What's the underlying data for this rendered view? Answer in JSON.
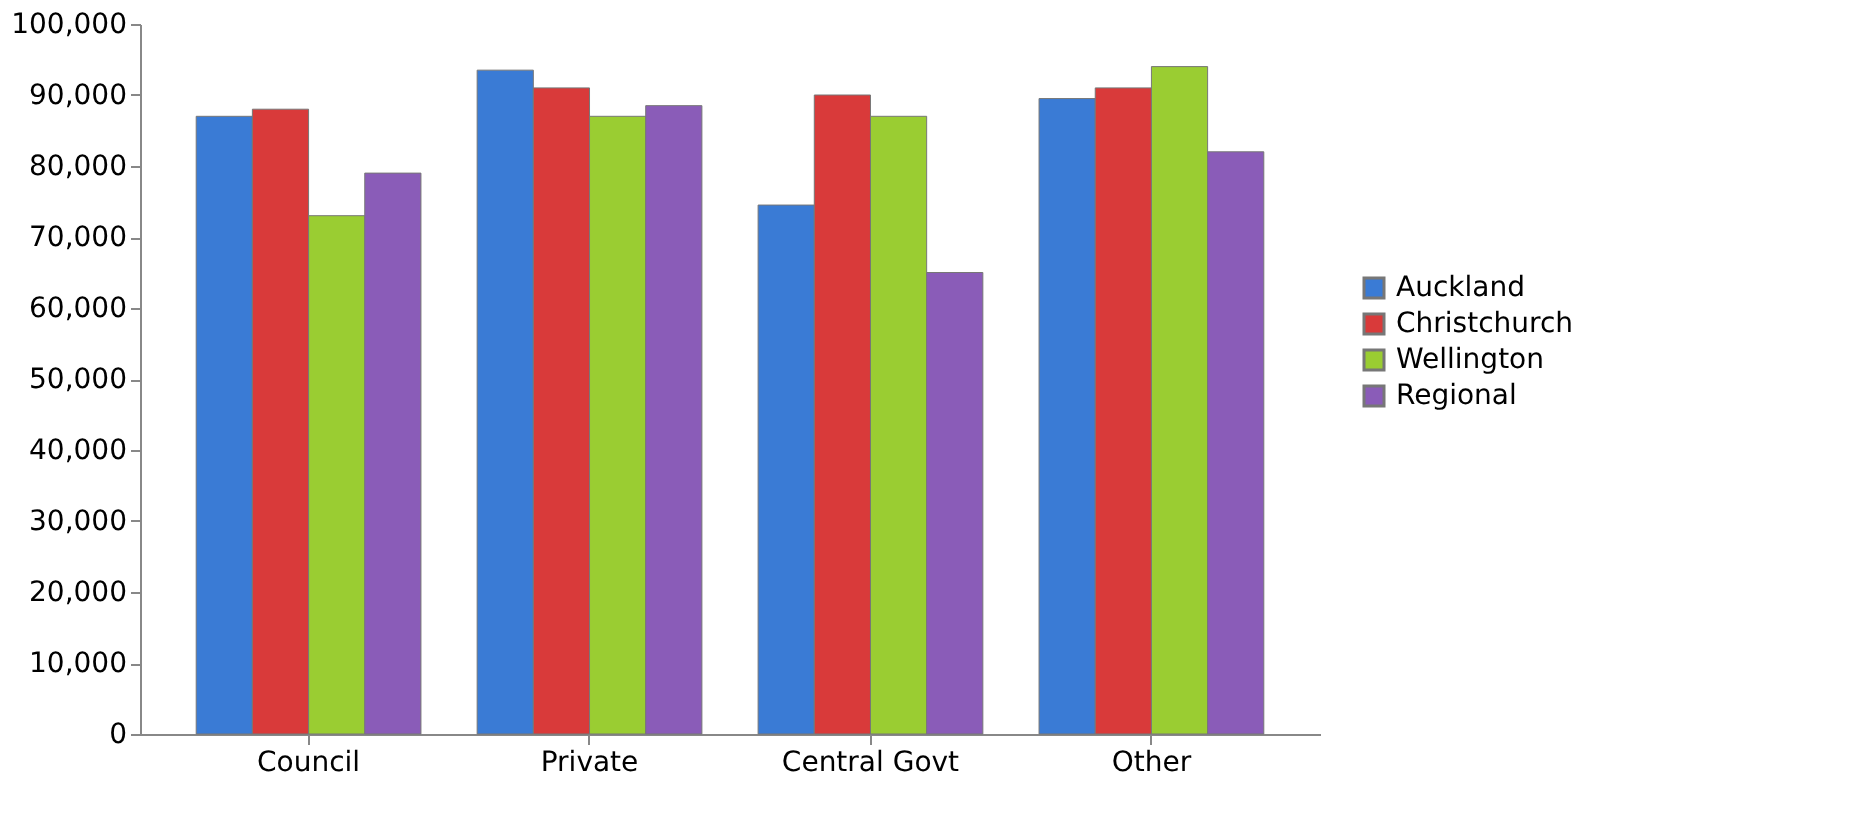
{
  "chart_data": {
    "type": "bar",
    "categories": [
      "Council",
      "Private",
      "Central Govt",
      "Other"
    ],
    "series": [
      {
        "name": "Auckland",
        "color": "#3a7bd5",
        "values": [
          87000,
          93500,
          74500,
          89500
        ]
      },
      {
        "name": "Christchurch",
        "color": "#d93a3a",
        "values": [
          88000,
          91000,
          90000,
          91000
        ]
      },
      {
        "name": "Wellington",
        "color": "#9acd32",
        "values": [
          73000,
          87000,
          87000,
          94000
        ]
      },
      {
        "name": "Regional",
        "color": "#8a5cb8",
        "values": [
          79000,
          88500,
          65000,
          82000
        ]
      }
    ],
    "ylim": [
      0,
      100000
    ],
    "yticks": [
      0,
      {
        "value": 10000,
        "label": "10,000"
      },
      {
        "value": 20000,
        "label": "20,000"
      },
      {
        "value": 30000,
        "label": "30,000"
      },
      {
        "value": 40000,
        "label": "40,000"
      },
      {
        "value": 50000,
        "label": "50,000"
      },
      {
        "value": 60000,
        "label": "60,000"
      },
      {
        "value": 70000,
        "label": "70,000"
      },
      {
        "value": 80000,
        "label": "80,000"
      },
      {
        "value": 90000,
        "label": "90,000"
      },
      {
        "value": 100000,
        "label": "100,000"
      }
    ],
    "grid": false,
    "legend": "right"
  }
}
